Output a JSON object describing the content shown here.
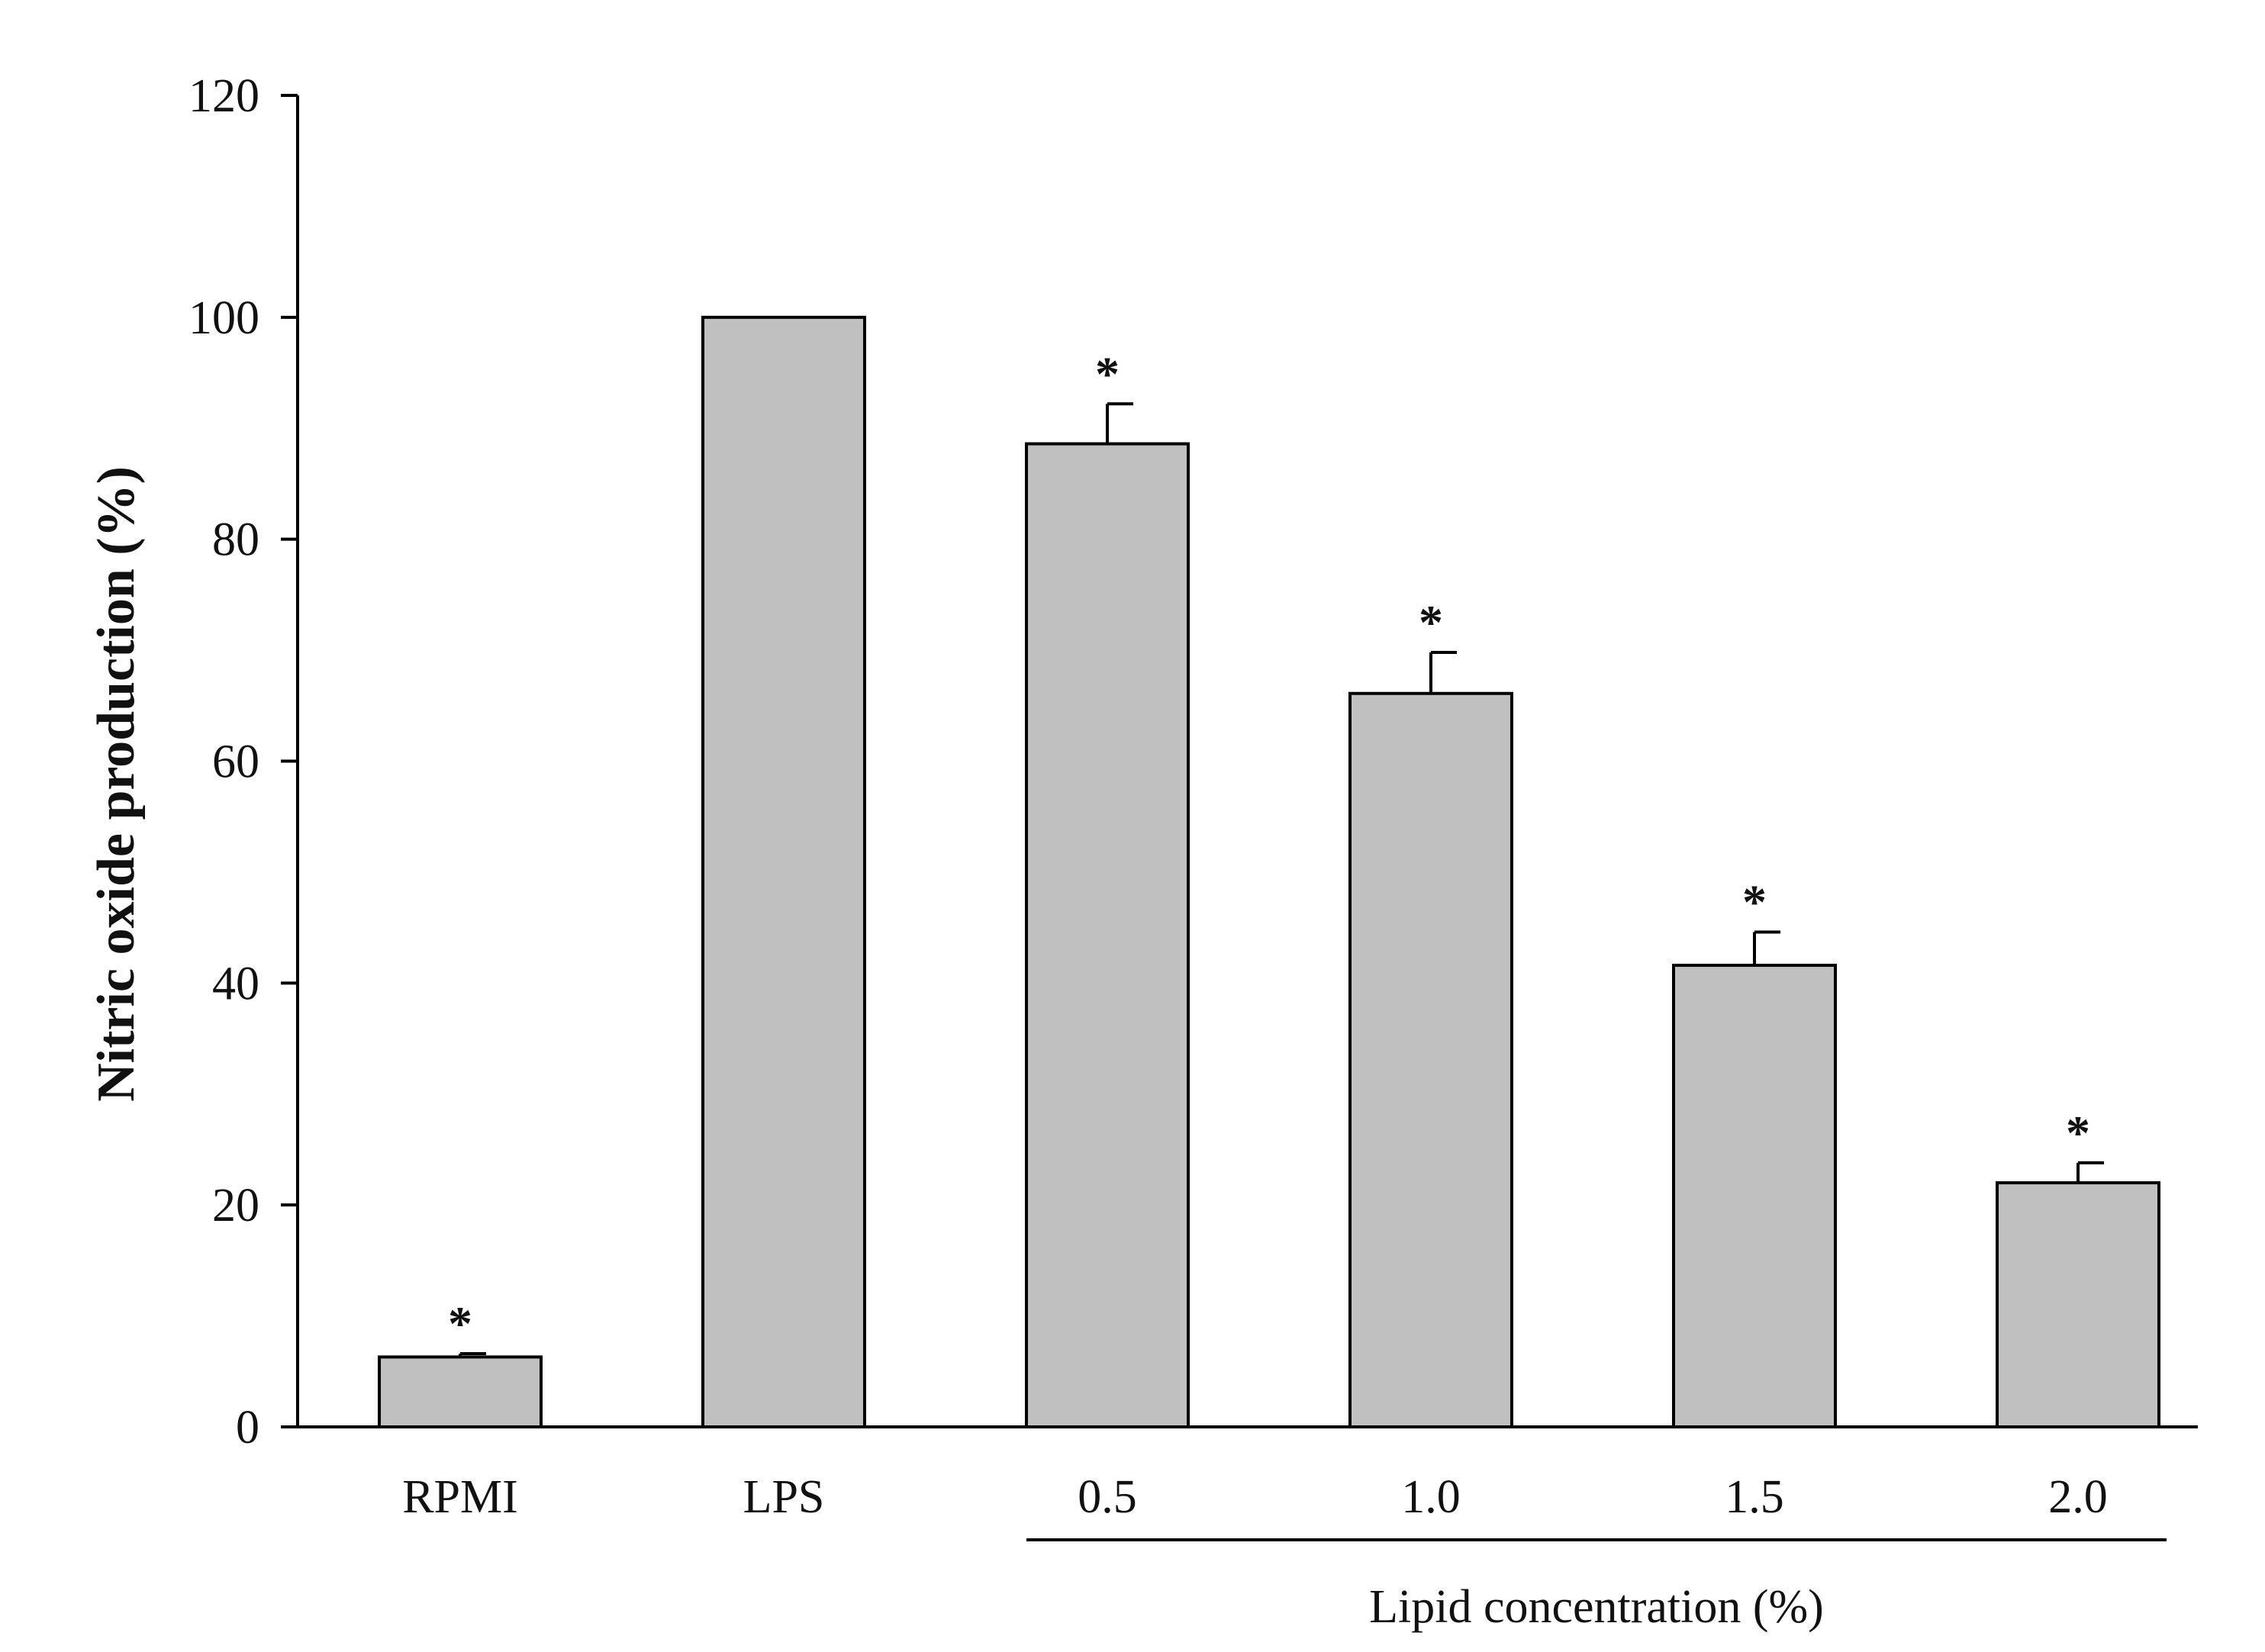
{
  "chart_data": {
    "type": "bar",
    "title": "",
    "ylabel": "Nitric oxide production (%)",
    "xlabel": "",
    "ylim": [
      0,
      120
    ],
    "yticks": [
      0,
      20,
      40,
      60,
      80,
      100,
      120
    ],
    "grid": false,
    "legend": "none",
    "categories": [
      "RPMI",
      "LPS",
      "0.5",
      "1.0",
      "1.5",
      "2.0"
    ],
    "values": [
      6.3,
      100,
      88.6,
      66.1,
      41.6,
      22.0
    ],
    "errors": [
      0.3,
      0,
      3.6,
      3.7,
      3.0,
      1.8
    ],
    "significance": [
      "*",
      "",
      "*",
      "*",
      "*",
      "*"
    ],
    "group_bracket": {
      "label": "Lipid concentration (%)",
      "from_index": 2,
      "to_index": 5
    },
    "colors": {
      "bar_fill": "#c0c0c0",
      "bar_stroke": "#000000",
      "axis": "#000000"
    }
  }
}
